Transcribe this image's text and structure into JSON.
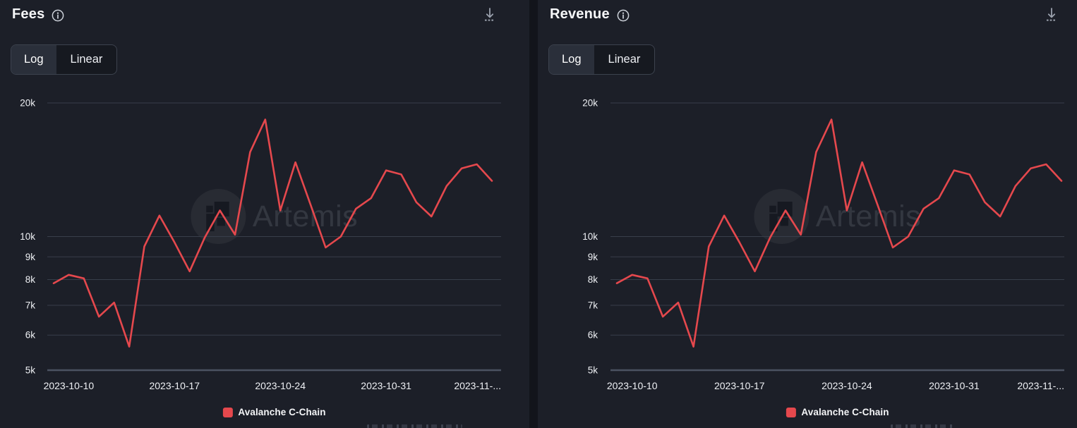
{
  "page": {
    "background": "#12141b",
    "panel_background": "#1c1f28"
  },
  "colors": {
    "line": "#e5484d",
    "grid": "#383e4a",
    "axis": "#4b5261",
    "tick_text": "#eef0f4",
    "title_text": "#f6f7f9",
    "icon": "#9ba2ae",
    "legend_swatch": "#e5484d",
    "watermark_text": "rgba(225,232,242,0.12)"
  },
  "panels": [
    {
      "title": "Fees",
      "scale_toggle": {
        "options": [
          "Log",
          "Linear"
        ],
        "selected": "Log"
      },
      "y_ticks": [
        "20k",
        "10k",
        "9k",
        "8k",
        "7k",
        "6k",
        "5k"
      ],
      "x_ticks": [
        "2023-10-10",
        "2023-10-17",
        "2023-10-24",
        "2023-10-31",
        "2023-11-..."
      ],
      "legend": "Avalanche C-Chain",
      "watermark": "Artemis"
    },
    {
      "title": "Revenue",
      "scale_toggle": {
        "options": [
          "Log",
          "Linear"
        ],
        "selected": "Log"
      },
      "y_ticks": [
        "20k",
        "10k",
        "9k",
        "8k",
        "7k",
        "6k",
        "5k"
      ],
      "x_ticks": [
        "2023-10-10",
        "2023-10-17",
        "2023-10-24",
        "2023-10-31",
        "2023-11-..."
      ],
      "legend": "Avalanche C-Chain",
      "watermark": "Artemis"
    }
  ],
  "chart_data": [
    {
      "type": "line",
      "title": "Fees",
      "yscale": "log",
      "ylim": [
        5000,
        20000
      ],
      "y_tick_values": [
        20000,
        10000,
        9000,
        8000,
        7000,
        6000,
        5000
      ],
      "x_tick_indices": [
        1,
        8,
        15,
        22,
        29
      ],
      "grid": true,
      "legend_position": "bottom",
      "x": [
        "2023-10-09",
        "2023-10-10",
        "2023-10-11",
        "2023-10-12",
        "2023-10-13",
        "2023-10-14",
        "2023-10-15",
        "2023-10-16",
        "2023-10-17",
        "2023-10-18",
        "2023-10-19",
        "2023-10-20",
        "2023-10-21",
        "2023-10-22",
        "2023-10-23",
        "2023-10-24",
        "2023-10-25",
        "2023-10-26",
        "2023-10-27",
        "2023-10-28",
        "2023-10-29",
        "2023-10-30",
        "2023-10-31",
        "2023-11-01",
        "2023-11-02",
        "2023-11-03",
        "2023-11-04",
        "2023-11-05",
        "2023-11-06",
        "2023-11-07"
      ],
      "series": [
        {
          "name": "Avalanche C-Chain",
          "color": "#e5484d",
          "values": [
            7850,
            8200,
            8050,
            6600,
            7100,
            5650,
            9500,
            11150,
            9700,
            8350,
            9950,
            11450,
            10100,
            15500,
            18350,
            11450,
            14700,
            11800,
            9450,
            10000,
            11550,
            12200,
            14100,
            13800,
            11950,
            11100,
            13000,
            14250,
            14550,
            13350
          ]
        }
      ]
    },
    {
      "type": "line",
      "title": "Revenue",
      "yscale": "log",
      "ylim": [
        5000,
        20000
      ],
      "y_tick_values": [
        20000,
        10000,
        9000,
        8000,
        7000,
        6000,
        5000
      ],
      "x_tick_indices": [
        1,
        8,
        15,
        22,
        29
      ],
      "grid": true,
      "legend_position": "bottom",
      "x": [
        "2023-10-09",
        "2023-10-10",
        "2023-10-11",
        "2023-10-12",
        "2023-10-13",
        "2023-10-14",
        "2023-10-15",
        "2023-10-16",
        "2023-10-17",
        "2023-10-18",
        "2023-10-19",
        "2023-10-20",
        "2023-10-21",
        "2023-10-22",
        "2023-10-23",
        "2023-10-24",
        "2023-10-25",
        "2023-10-26",
        "2023-10-27",
        "2023-10-28",
        "2023-10-29",
        "2023-10-30",
        "2023-10-31",
        "2023-11-01",
        "2023-11-02",
        "2023-11-03",
        "2023-11-04",
        "2023-11-05",
        "2023-11-06",
        "2023-11-07"
      ],
      "series": [
        {
          "name": "Avalanche C-Chain",
          "color": "#e5484d",
          "values": [
            7850,
            8200,
            8050,
            6600,
            7100,
            5650,
            9500,
            11150,
            9700,
            8350,
            9950,
            11450,
            10100,
            15500,
            18350,
            11450,
            14700,
            11800,
            9450,
            10000,
            11550,
            12200,
            14100,
            13800,
            11950,
            11100,
            13000,
            14250,
            14550,
            13350
          ]
        }
      ]
    }
  ]
}
